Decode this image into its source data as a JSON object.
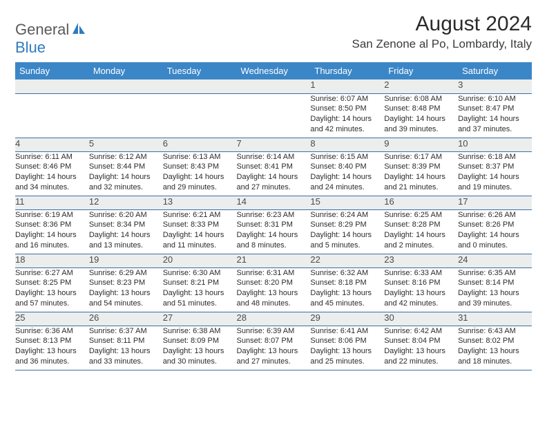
{
  "logo": {
    "general": "General",
    "blue": "Blue",
    "icon_color": "#2f7bbf"
  },
  "title": "August 2024",
  "location": "San Zenone al Po, Lombardy, Italy",
  "header_bg": "#3b86c7",
  "header_fg": "#ffffff",
  "daynum_bg": "#eceded",
  "row_divider": "#3b6fa0",
  "day_labels": [
    "Sunday",
    "Monday",
    "Tuesday",
    "Wednesday",
    "Thursday",
    "Friday",
    "Saturday"
  ],
  "weeks": [
    {
      "nums": [
        "",
        "",
        "",
        "",
        "1",
        "2",
        "3"
      ],
      "cells": [
        null,
        null,
        null,
        null,
        {
          "sunrise": "Sunrise: 6:07 AM",
          "sunset": "Sunset: 8:50 PM",
          "dl1": "Daylight: 14 hours",
          "dl2": "and 42 minutes."
        },
        {
          "sunrise": "Sunrise: 6:08 AM",
          "sunset": "Sunset: 8:48 PM",
          "dl1": "Daylight: 14 hours",
          "dl2": "and 39 minutes."
        },
        {
          "sunrise": "Sunrise: 6:10 AM",
          "sunset": "Sunset: 8:47 PM",
          "dl1": "Daylight: 14 hours",
          "dl2": "and 37 minutes."
        }
      ]
    },
    {
      "nums": [
        "4",
        "5",
        "6",
        "7",
        "8",
        "9",
        "10"
      ],
      "cells": [
        {
          "sunrise": "Sunrise: 6:11 AM",
          "sunset": "Sunset: 8:46 PM",
          "dl1": "Daylight: 14 hours",
          "dl2": "and 34 minutes."
        },
        {
          "sunrise": "Sunrise: 6:12 AM",
          "sunset": "Sunset: 8:44 PM",
          "dl1": "Daylight: 14 hours",
          "dl2": "and 32 minutes."
        },
        {
          "sunrise": "Sunrise: 6:13 AM",
          "sunset": "Sunset: 8:43 PM",
          "dl1": "Daylight: 14 hours",
          "dl2": "and 29 minutes."
        },
        {
          "sunrise": "Sunrise: 6:14 AM",
          "sunset": "Sunset: 8:41 PM",
          "dl1": "Daylight: 14 hours",
          "dl2": "and 27 minutes."
        },
        {
          "sunrise": "Sunrise: 6:15 AM",
          "sunset": "Sunset: 8:40 PM",
          "dl1": "Daylight: 14 hours",
          "dl2": "and 24 minutes."
        },
        {
          "sunrise": "Sunrise: 6:17 AM",
          "sunset": "Sunset: 8:39 PM",
          "dl1": "Daylight: 14 hours",
          "dl2": "and 21 minutes."
        },
        {
          "sunrise": "Sunrise: 6:18 AM",
          "sunset": "Sunset: 8:37 PM",
          "dl1": "Daylight: 14 hours",
          "dl2": "and 19 minutes."
        }
      ]
    },
    {
      "nums": [
        "11",
        "12",
        "13",
        "14",
        "15",
        "16",
        "17"
      ],
      "cells": [
        {
          "sunrise": "Sunrise: 6:19 AM",
          "sunset": "Sunset: 8:36 PM",
          "dl1": "Daylight: 14 hours",
          "dl2": "and 16 minutes."
        },
        {
          "sunrise": "Sunrise: 6:20 AM",
          "sunset": "Sunset: 8:34 PM",
          "dl1": "Daylight: 14 hours",
          "dl2": "and 13 minutes."
        },
        {
          "sunrise": "Sunrise: 6:21 AM",
          "sunset": "Sunset: 8:33 PM",
          "dl1": "Daylight: 14 hours",
          "dl2": "and 11 minutes."
        },
        {
          "sunrise": "Sunrise: 6:23 AM",
          "sunset": "Sunset: 8:31 PM",
          "dl1": "Daylight: 14 hours",
          "dl2": "and 8 minutes."
        },
        {
          "sunrise": "Sunrise: 6:24 AM",
          "sunset": "Sunset: 8:29 PM",
          "dl1": "Daylight: 14 hours",
          "dl2": "and 5 minutes."
        },
        {
          "sunrise": "Sunrise: 6:25 AM",
          "sunset": "Sunset: 8:28 PM",
          "dl1": "Daylight: 14 hours",
          "dl2": "and 2 minutes."
        },
        {
          "sunrise": "Sunrise: 6:26 AM",
          "sunset": "Sunset: 8:26 PM",
          "dl1": "Daylight: 14 hours",
          "dl2": "and 0 minutes."
        }
      ]
    },
    {
      "nums": [
        "18",
        "19",
        "20",
        "21",
        "22",
        "23",
        "24"
      ],
      "cells": [
        {
          "sunrise": "Sunrise: 6:27 AM",
          "sunset": "Sunset: 8:25 PM",
          "dl1": "Daylight: 13 hours",
          "dl2": "and 57 minutes."
        },
        {
          "sunrise": "Sunrise: 6:29 AM",
          "sunset": "Sunset: 8:23 PM",
          "dl1": "Daylight: 13 hours",
          "dl2": "and 54 minutes."
        },
        {
          "sunrise": "Sunrise: 6:30 AM",
          "sunset": "Sunset: 8:21 PM",
          "dl1": "Daylight: 13 hours",
          "dl2": "and 51 minutes."
        },
        {
          "sunrise": "Sunrise: 6:31 AM",
          "sunset": "Sunset: 8:20 PM",
          "dl1": "Daylight: 13 hours",
          "dl2": "and 48 minutes."
        },
        {
          "sunrise": "Sunrise: 6:32 AM",
          "sunset": "Sunset: 8:18 PM",
          "dl1": "Daylight: 13 hours",
          "dl2": "and 45 minutes."
        },
        {
          "sunrise": "Sunrise: 6:33 AM",
          "sunset": "Sunset: 8:16 PM",
          "dl1": "Daylight: 13 hours",
          "dl2": "and 42 minutes."
        },
        {
          "sunrise": "Sunrise: 6:35 AM",
          "sunset": "Sunset: 8:14 PM",
          "dl1": "Daylight: 13 hours",
          "dl2": "and 39 minutes."
        }
      ]
    },
    {
      "nums": [
        "25",
        "26",
        "27",
        "28",
        "29",
        "30",
        "31"
      ],
      "cells": [
        {
          "sunrise": "Sunrise: 6:36 AM",
          "sunset": "Sunset: 8:13 PM",
          "dl1": "Daylight: 13 hours",
          "dl2": "and 36 minutes."
        },
        {
          "sunrise": "Sunrise: 6:37 AM",
          "sunset": "Sunset: 8:11 PM",
          "dl1": "Daylight: 13 hours",
          "dl2": "and 33 minutes."
        },
        {
          "sunrise": "Sunrise: 6:38 AM",
          "sunset": "Sunset: 8:09 PM",
          "dl1": "Daylight: 13 hours",
          "dl2": "and 30 minutes."
        },
        {
          "sunrise": "Sunrise: 6:39 AM",
          "sunset": "Sunset: 8:07 PM",
          "dl1": "Daylight: 13 hours",
          "dl2": "and 27 minutes."
        },
        {
          "sunrise": "Sunrise: 6:41 AM",
          "sunset": "Sunset: 8:06 PM",
          "dl1": "Daylight: 13 hours",
          "dl2": "and 25 minutes."
        },
        {
          "sunrise": "Sunrise: 6:42 AM",
          "sunset": "Sunset: 8:04 PM",
          "dl1": "Daylight: 13 hours",
          "dl2": "and 22 minutes."
        },
        {
          "sunrise": "Sunrise: 6:43 AM",
          "sunset": "Sunset: 8:02 PM",
          "dl1": "Daylight: 13 hours",
          "dl2": "and 18 minutes."
        }
      ]
    }
  ]
}
